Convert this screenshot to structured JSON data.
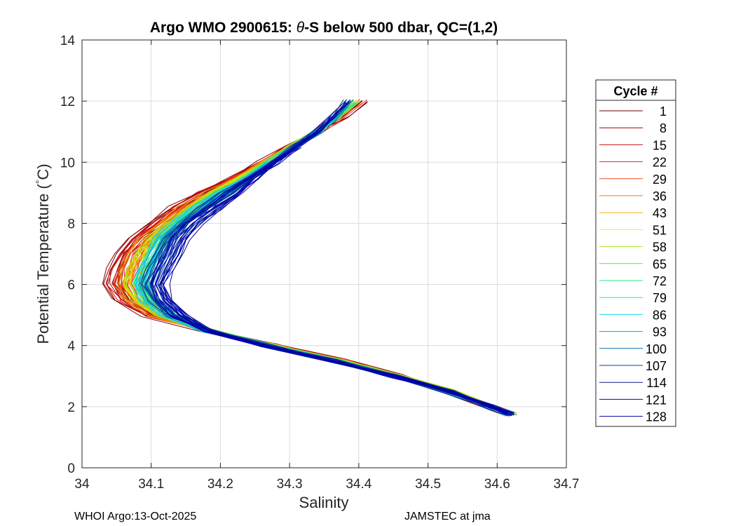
{
  "chart_data": {
    "type": "line",
    "title_prefix": "Argo WMO 2900615: ",
    "title_symbol": "θ",
    "title_suffix": "-S below 500 dbar,  QC=(1,2)",
    "xlabel": "Salinity",
    "ylabel_prefix": "Potential Temperature (",
    "ylabel_degree": "°",
    "ylabel_suffix": "C)",
    "xlim": [
      34,
      34.7
    ],
    "ylim": [
      0,
      14
    ],
    "xticks": [
      "34",
      "34.1",
      "34.2",
      "34.3",
      "34.4",
      "34.5",
      "34.6",
      "34.7"
    ],
    "yticks": [
      "0",
      "2",
      "4",
      "6",
      "8",
      "10",
      "12",
      "14"
    ],
    "grid": true,
    "legend": {
      "title": "Cycle #",
      "placement": "right",
      "entries": [
        {
          "label": "1",
          "color": "#6e0000"
        },
        {
          "label": "8",
          "color": "#a30000"
        },
        {
          "label": "15",
          "color": "#cc1010"
        },
        {
          "label": "22",
          "color": "#e02820"
        },
        {
          "label": "29",
          "color": "#e8501e"
        },
        {
          "label": "36",
          "color": "#f07a10"
        },
        {
          "label": "43",
          "color": "#f0b400"
        },
        {
          "label": "51",
          "color": "#f2f200"
        },
        {
          "label": "58",
          "color": "#a8e61e"
        },
        {
          "label": "65",
          "color": "#5ce63c"
        },
        {
          "label": "72",
          "color": "#28e682"
        },
        {
          "label": "79",
          "color": "#1ee6c0"
        },
        {
          "label": "86",
          "color": "#1ad2f0"
        },
        {
          "label": "93",
          "color": "#0aa0d2"
        },
        {
          "label": "100",
          "color": "#0a6eb4"
        },
        {
          "label": "107",
          "color": "#0a4696"
        },
        {
          "label": "114",
          "color": "#0a1e82"
        },
        {
          "label": "121",
          "color": "#0000c8"
        },
        {
          "label": "128",
          "color": "#000096"
        }
      ]
    },
    "series_template": {
      "theta": [
        1.75,
        2.0,
        2.5,
        3.0,
        3.5,
        4.0,
        4.5,
        5.0,
        5.5,
        6.0,
        6.5,
        7.0,
        7.5,
        8.0,
        8.5,
        9.0,
        9.5,
        10.0,
        10.5,
        11.0,
        11.5,
        12.0
      ],
      "salinity_early": [
        34.62,
        34.59,
        34.53,
        34.46,
        34.38,
        34.28,
        34.18,
        34.1,
        34.06,
        34.045,
        34.05,
        34.06,
        34.08,
        34.11,
        34.14,
        34.18,
        34.22,
        34.26,
        34.3,
        34.34,
        34.38,
        34.41
      ],
      "salinity_late": [
        34.62,
        34.59,
        34.53,
        34.45,
        34.36,
        34.26,
        34.18,
        34.14,
        34.12,
        34.11,
        34.12,
        34.13,
        34.14,
        34.16,
        34.19,
        34.22,
        34.25,
        34.28,
        34.31,
        34.34,
        34.36,
        34.38
      ]
    }
  },
  "footer": {
    "left": "WHOI Argo:13-Oct-2025",
    "right": "JAMSTEC at jma"
  }
}
